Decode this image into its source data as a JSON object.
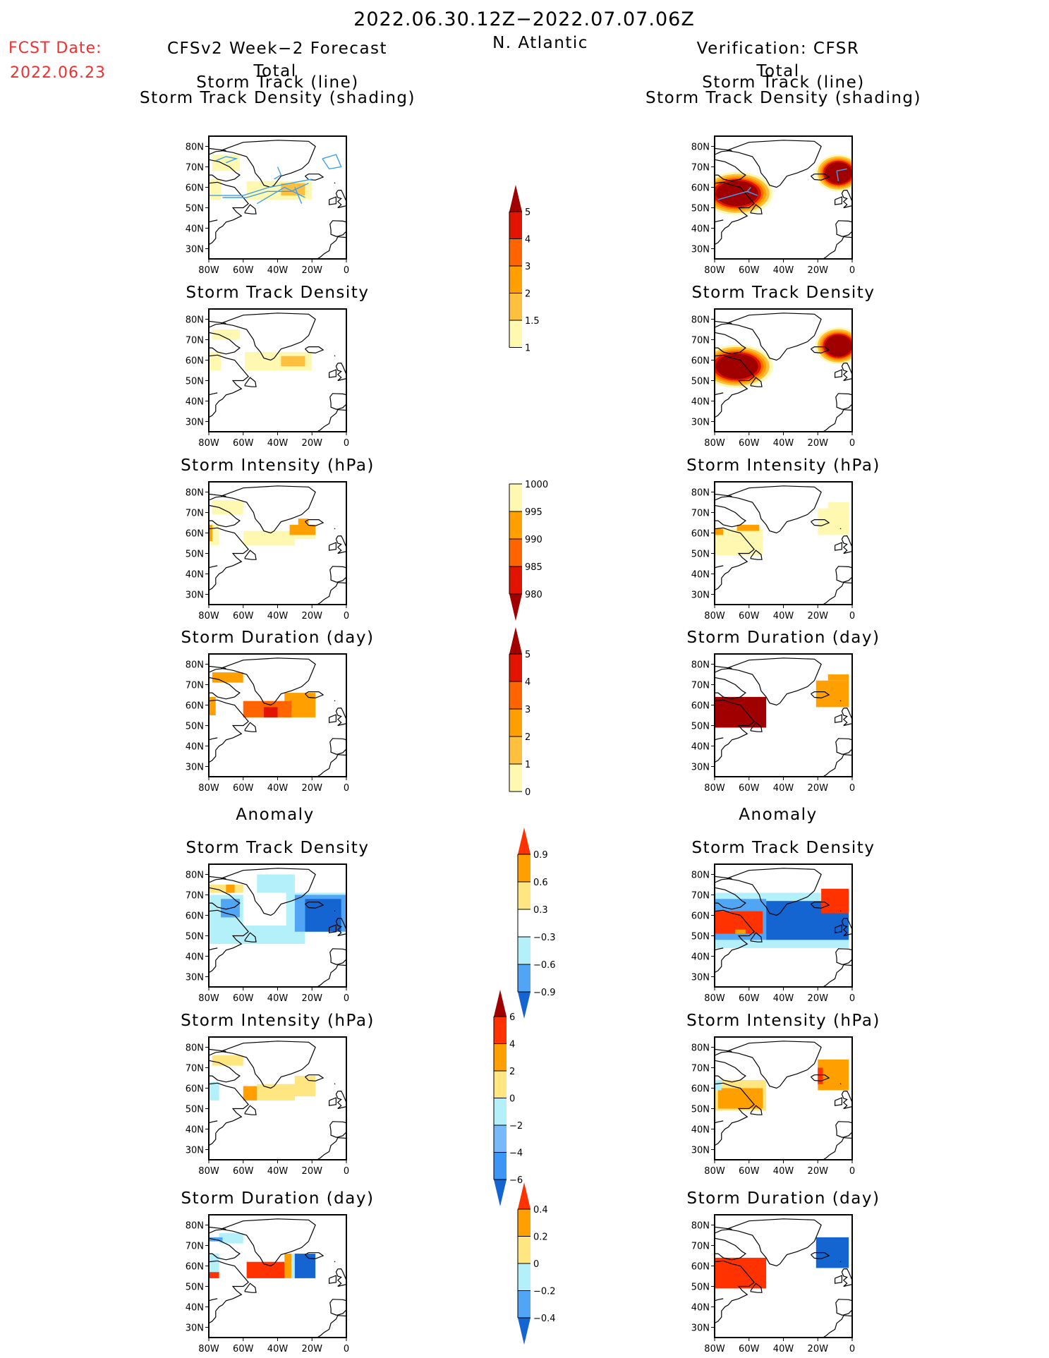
{
  "header": {
    "date_range": "2022.06.30.12Z−2022.07.07.06Z",
    "region": "N. Atlantic",
    "fcst_date_label": "FCST Date:",
    "fcst_date_value": "2022.06.23",
    "left_title": "CFSv2 Week−2 Forecast",
    "right_title": "Verification: CFSR",
    "total_label": "Total",
    "anomaly_label": "Anomaly"
  },
  "colors": {
    "track_line": "#3ca0f0",
    "coast": "#000000"
  },
  "chart_data": [
    {
      "id": "fc_track",
      "column": "forecast",
      "section": "total",
      "type": "heatmap",
      "title": [
        "Storm Track (line)",
        "Storm Track Density (shading)"
      ],
      "scale": "density",
      "xticks": [
        "80W",
        "60W",
        "40W",
        "20W",
        "0"
      ],
      "yticks": [
        "80N",
        "70N",
        "60N",
        "50N",
        "40N",
        "30N"
      ],
      "xlim": [
        -80,
        0
      ],
      "ylim": [
        25,
        85
      ],
      "cells": [
        [
          -78,
          68,
          -62,
          76,
          1
        ],
        [
          -80,
          54,
          -73,
          64,
          1
        ],
        [
          -58,
          54,
          -20,
          63,
          1
        ],
        [
          -38,
          56,
          -24,
          62,
          1.5
        ]
      ],
      "tracks": [
        [
          [
            -80,
            56
          ],
          [
            -60,
            56
          ],
          [
            -45,
            60
          ],
          [
            -20,
            64
          ]
        ],
        [
          [
            -76,
            73
          ],
          [
            -70,
            75
          ],
          [
            -64,
            74
          ],
          [
            -70,
            72
          ]
        ],
        [
          [
            -72,
            55
          ],
          [
            -58,
            55
          ],
          [
            -46,
            58
          ],
          [
            -32,
            58
          ],
          [
            -22,
            62
          ]
        ],
        [
          [
            -14,
            74
          ],
          [
            -6,
            76
          ],
          [
            -3,
            70
          ],
          [
            -10,
            69
          ],
          [
            -14,
            74
          ]
        ],
        [
          [
            -40,
            70
          ],
          [
            -38,
            66
          ],
          [
            -42,
            64
          ]
        ],
        [
          [
            -30,
            60
          ],
          [
            -26,
            52
          ]
        ],
        [
          [
            -52,
            52
          ],
          [
            -36,
            60
          ],
          [
            -24,
            55
          ]
        ]
      ]
    },
    {
      "id": "obs_track",
      "column": "verification",
      "section": "total",
      "type": "heatmap",
      "title": [
        "Storm Track (line)",
        "Storm Track Density (shading)"
      ],
      "scale": "density",
      "xticks": [
        "80W",
        "60W",
        "40W",
        "20W",
        "0"
      ],
      "yticks": [
        "80N",
        "70N",
        "60N",
        "50N",
        "40N",
        "30N"
      ],
      "xlim": [
        -80,
        0
      ],
      "ylim": [
        25,
        85
      ],
      "blobs": [
        [
          -67,
          57,
          14,
          7
        ],
        [
          -8,
          67,
          9,
          6
        ]
      ],
      "tracks": [
        [
          [
            -78,
            54
          ],
          [
            -61,
            58
          ],
          [
            -55,
            56
          ]
        ],
        [
          [
            -61,
            58
          ],
          [
            -59,
            60
          ]
        ],
        [
          [
            -9,
            68
          ],
          [
            -8,
            63
          ]
        ],
        [
          [
            -9,
            68
          ],
          [
            -3,
            69
          ]
        ]
      ]
    },
    {
      "id": "fc_density",
      "column": "forecast",
      "section": "total",
      "type": "heatmap",
      "title": [
        "Storm Track Density"
      ],
      "scale": "density",
      "xticks": [
        "80W",
        "60W",
        "40W",
        "20W",
        "0"
      ],
      "yticks": [
        "80N",
        "70N",
        "60N",
        "50N",
        "40N",
        "30N"
      ],
      "xlim": [
        -80,
        0
      ],
      "ylim": [
        25,
        85
      ],
      "cells": [
        [
          -78,
          70,
          -62,
          75,
          1
        ],
        [
          -80,
          55,
          -73,
          64,
          1
        ],
        [
          -59,
          55,
          -20,
          64,
          1
        ],
        [
          -38,
          57,
          -24,
          62,
          1.5
        ]
      ]
    },
    {
      "id": "obs_density",
      "column": "verification",
      "section": "total",
      "type": "heatmap",
      "title": [
        "Storm Track Density"
      ],
      "scale": "density",
      "blobs": [
        [
          -67,
          57,
          14,
          7
        ],
        [
          -8,
          67,
          9,
          6
        ]
      ],
      "xticks": [
        "80W",
        "60W",
        "40W",
        "20W",
        "0"
      ],
      "yticks": [
        "80N",
        "70N",
        "60N",
        "50N",
        "40N",
        "30N"
      ],
      "xlim": [
        -80,
        0
      ],
      "ylim": [
        25,
        85
      ]
    },
    {
      "id": "fc_intensity",
      "column": "forecast",
      "section": "total",
      "type": "heatmap",
      "title": [
        "Storm Intensity (hPa)"
      ],
      "scale": "intensity",
      "xticks": [
        "80W",
        "60W",
        "40W",
        "20W",
        "0"
      ],
      "yticks": [
        "80N",
        "70N",
        "60N",
        "50N",
        "40N",
        "30N"
      ],
      "xlim": [
        -80,
        0
      ],
      "ylim": [
        25,
        85
      ],
      "cells": [
        [
          -78,
          69,
          -60,
          76,
          997
        ],
        [
          -80,
          54,
          -74,
          64,
          997
        ],
        [
          -60,
          54,
          -30,
          61,
          997
        ],
        [
          -30,
          57,
          -18,
          61,
          997
        ],
        [
          -80,
          56,
          -78,
          64,
          992
        ],
        [
          -33,
          59,
          -18,
          64,
          992
        ],
        [
          -28,
          64,
          -22,
          67,
          992
        ]
      ]
    },
    {
      "id": "obs_intensity",
      "column": "verification",
      "section": "total",
      "type": "heatmap",
      "title": [
        "Storm Intensity (hPa)"
      ],
      "scale": "intensity",
      "xticks": [
        "80W",
        "60W",
        "40W",
        "20W",
        "0"
      ],
      "yticks": [
        "80N",
        "70N",
        "60N",
        "50N",
        "40N",
        "30N"
      ],
      "xlim": [
        -80,
        0
      ],
      "ylim": [
        25,
        85
      ],
      "cells": [
        [
          -80,
          49,
          -52,
          62,
          997
        ],
        [
          -20,
          59,
          -2,
          72,
          997
        ],
        [
          -14,
          72,
          -2,
          75,
          997
        ],
        [
          -67,
          61,
          -54,
          64,
          992
        ],
        [
          -80,
          59,
          -75,
          62,
          992
        ]
      ]
    },
    {
      "id": "fc_duration",
      "column": "forecast",
      "section": "total",
      "type": "heatmap",
      "title": [
        "Storm Duration (day)"
      ],
      "scale": "duration",
      "xticks": [
        "80W",
        "60W",
        "40W",
        "20W",
        "0"
      ],
      "yticks": [
        "80N",
        "70N",
        "60N",
        "50N",
        "40N",
        "30N"
      ],
      "xlim": [
        -80,
        0
      ],
      "ylim": [
        25,
        85
      ],
      "cells": [
        [
          -78,
          71,
          -60,
          76,
          2.5
        ],
        [
          -80,
          55,
          -76,
          64,
          2.5
        ],
        [
          -36,
          54,
          -18,
          66,
          2.5
        ],
        [
          -60,
          54,
          -32,
          62,
          3.5
        ],
        [
          -48,
          54,
          -40,
          59,
          4.5
        ]
      ]
    },
    {
      "id": "obs_duration",
      "column": "verification",
      "section": "total",
      "type": "heatmap",
      "title": [
        "Storm Duration (day)"
      ],
      "scale": "duration",
      "xticks": [
        "80W",
        "60W",
        "40W",
        "20W",
        "0"
      ],
      "yticks": [
        "80N",
        "70N",
        "60N",
        "50N",
        "40N",
        "30N"
      ],
      "xlim": [
        -80,
        0
      ],
      "ylim": [
        25,
        85
      ],
      "cells": [
        [
          -80,
          49,
          -50,
          64,
          5.5
        ],
        [
          -21,
          59,
          -2,
          72,
          2.5
        ],
        [
          -14,
          72,
          -2,
          75,
          2.5
        ]
      ]
    },
    {
      "id": "fc_density_anom",
      "column": "forecast",
      "section": "anomaly",
      "type": "heatmap",
      "title": [
        "Storm Track Density"
      ],
      "scale": "density_anom",
      "xticks": [
        "80W",
        "60W",
        "40W",
        "20W",
        "0"
      ],
      "yticks": [
        "80N",
        "70N",
        "60N",
        "50N",
        "40N",
        "30N"
      ],
      "xlim": [
        -80,
        0
      ],
      "ylim": [
        25,
        85
      ],
      "cells": [
        [
          -52,
          71,
          -30,
          80,
          -0.4
        ],
        [
          -80,
          46,
          -24,
          55,
          -0.4
        ],
        [
          -80,
          55,
          -60,
          70,
          -0.4
        ],
        [
          -35,
          55,
          0,
          71,
          -0.4
        ],
        [
          -73,
          59,
          -62,
          68,
          -0.7
        ],
        [
          -30,
          52,
          0,
          70,
          -0.7
        ],
        [
          -24,
          52,
          -3,
          68,
          -1.0
        ],
        [
          -80,
          71,
          -60,
          75,
          0.4
        ],
        [
          -70,
          71,
          -65,
          75,
          0.7
        ]
      ]
    },
    {
      "id": "obs_density_anom",
      "column": "verification",
      "section": "anomaly",
      "type": "heatmap",
      "title": [
        "Storm Track Density"
      ],
      "scale": "density_anom",
      "xticks": [
        "80W",
        "60W",
        "40W",
        "20W",
        "0"
      ],
      "yticks": [
        "80N",
        "70N",
        "60N",
        "50N",
        "40N",
        "30N"
      ],
      "xlim": [
        -80,
        0
      ],
      "ylim": [
        25,
        85
      ],
      "cells": [
        [
          -80,
          44,
          -2,
          71,
          -0.4
        ],
        [
          -80,
          48,
          -50,
          68,
          -0.7
        ],
        [
          -50,
          48,
          -2,
          67,
          -1.0
        ],
        [
          -38,
          50,
          -10,
          64,
          -1.0
        ],
        [
          -80,
          51,
          -52,
          62,
          1.0
        ],
        [
          -18,
          61,
          -2,
          73,
          1.0
        ],
        [
          -68,
          51,
          -62,
          53,
          0.7
        ]
      ]
    },
    {
      "id": "fc_intensity_anom",
      "column": "forecast",
      "section": "anomaly",
      "type": "heatmap",
      "title": [
        "Storm Intensity (hPa)"
      ],
      "scale": "intensity_anom",
      "xticks": [
        "80W",
        "60W",
        "40W",
        "20W",
        "0"
      ],
      "yticks": [
        "80N",
        "70N",
        "60N",
        "50N",
        "40N",
        "30N"
      ],
      "xlim": [
        -80,
        0
      ],
      "ylim": [
        25,
        85
      ],
      "cells": [
        [
          -78,
          71,
          -60,
          76,
          1
        ],
        [
          -52,
          54,
          -30,
          62,
          1
        ],
        [
          -30,
          56,
          -18,
          66,
          1
        ],
        [
          -60,
          54,
          -52,
          61,
          3
        ],
        [
          -80,
          54,
          -74,
          63,
          -1
        ]
      ]
    },
    {
      "id": "obs_intensity_anom",
      "column": "verification",
      "section": "anomaly",
      "type": "heatmap",
      "title": [
        "Storm Intensity (hPa)"
      ],
      "scale": "intensity_anom",
      "xticks": [
        "80W",
        "60W",
        "40W",
        "20W",
        "0"
      ],
      "yticks": [
        "80N",
        "70N",
        "60N",
        "50N",
        "40N",
        "30N"
      ],
      "xlim": [
        -80,
        0
      ],
      "ylim": [
        25,
        85
      ],
      "cells": [
        [
          -80,
          49,
          -50,
          64,
          1
        ],
        [
          -78,
          50,
          -52,
          60,
          3
        ],
        [
          -20,
          59,
          -2,
          74,
          3
        ],
        [
          -20,
          62,
          -17,
          70,
          5
        ],
        [
          -80,
          59,
          -76,
          64,
          -1
        ]
      ]
    },
    {
      "id": "fc_duration_anom",
      "column": "forecast",
      "section": "anomaly",
      "type": "heatmap",
      "title": [
        "Storm Duration (day)"
      ],
      "scale": "duration_anom",
      "xticks": [
        "80W",
        "60W",
        "40W",
        "20W",
        "0"
      ],
      "yticks": [
        "80N",
        "70N",
        "60N",
        "50N",
        "40N",
        "30N"
      ],
      "xlim": [
        -80,
        0
      ],
      "ylim": [
        25,
        85
      ],
      "cells": [
        [
          -74,
          71,
          -60,
          76,
          -0.1
        ],
        [
          -80,
          72,
          -72,
          74,
          -0.3
        ],
        [
          -80,
          57,
          -74,
          66,
          -0.1
        ],
        [
          -80,
          54,
          -74,
          57,
          0.5
        ],
        [
          -58,
          54,
          -36,
          62,
          0.5
        ],
        [
          -36,
          54,
          -32,
          66,
          0.3
        ],
        [
          -32,
          54,
          -28,
          66,
          -0.1
        ],
        [
          -30,
          54,
          -18,
          66,
          -0.5
        ]
      ]
    },
    {
      "id": "obs_duration_anom",
      "column": "verification",
      "section": "anomaly",
      "type": "heatmap",
      "title": [
        "Storm Duration (day)"
      ],
      "scale": "duration_anom",
      "xticks": [
        "80W",
        "60W",
        "40W",
        "20W",
        "0"
      ],
      "yticks": [
        "80N",
        "70N",
        "60N",
        "50N",
        "40N",
        "30N"
      ],
      "xlim": [
        -80,
        0
      ],
      "ylim": [
        25,
        85
      ],
      "cells": [
        [
          -80,
          49,
          -50,
          64,
          0.5
        ],
        [
          -21,
          59,
          -2,
          74,
          -0.5
        ]
      ]
    }
  ],
  "colorbars": [
    {
      "id": "density",
      "levels": [
        "1",
        "1.5",
        "2",
        "3",
        "4",
        "5"
      ],
      "colors": [
        "#fff8b0",
        "#ffc040",
        "#ffa000",
        "#ff6400",
        "#e01400"
      ],
      "tip_top": "#a00000",
      "tip_bottom": null
    },
    {
      "id": "intensity",
      "levels": [
        "1000",
        "995",
        "990",
        "985",
        "980"
      ],
      "colors": [
        "#fff8b0",
        "#ffa000",
        "#ff6400",
        "#e01400"
      ],
      "tip_top": null,
      "tip_bottom": "#a00000"
    },
    {
      "id": "duration",
      "levels": [
        "5",
        "4",
        "3",
        "2",
        "1",
        "0"
      ],
      "colors": [
        "#e01400",
        "#ff6400",
        "#ffa000",
        "#ffc040",
        "#fff8b0"
      ],
      "tip_top": "#a00000",
      "tip_bottom": null
    },
    {
      "id": "density_anom",
      "levels": [
        "0.9",
        "0.6",
        "0.3",
        "−0.3",
        "−0.6",
        "−0.9"
      ],
      "colors": [
        "#ffa000",
        "#ffe680",
        "#ffffff",
        "#b4f0fa",
        "#50a5f5"
      ],
      "tip_top": "#ff3200",
      "tip_bottom": "#1464d2"
    },
    {
      "id": "intensity_anom",
      "levels": [
        "6",
        "4",
        "2",
        "0",
        "−2",
        "−4",
        "−6"
      ],
      "colors": [
        "#ff3200",
        "#ffa000",
        "#ffe680",
        "#b4f0fa",
        "#78b9fa",
        "#3c96f5"
      ],
      "tip_top": "#a00000",
      "tip_bottom": "#1464d2"
    },
    {
      "id": "duration_anom",
      "levels": [
        "0.4",
        "0.2",
        "0",
        "−0.2",
        "−0.4"
      ],
      "colors": [
        "#ffa000",
        "#ffe680",
        "#b4f0fa",
        "#50a5f5"
      ],
      "tip_top": "#ff3200",
      "tip_bottom": "#1464d2"
    }
  ]
}
